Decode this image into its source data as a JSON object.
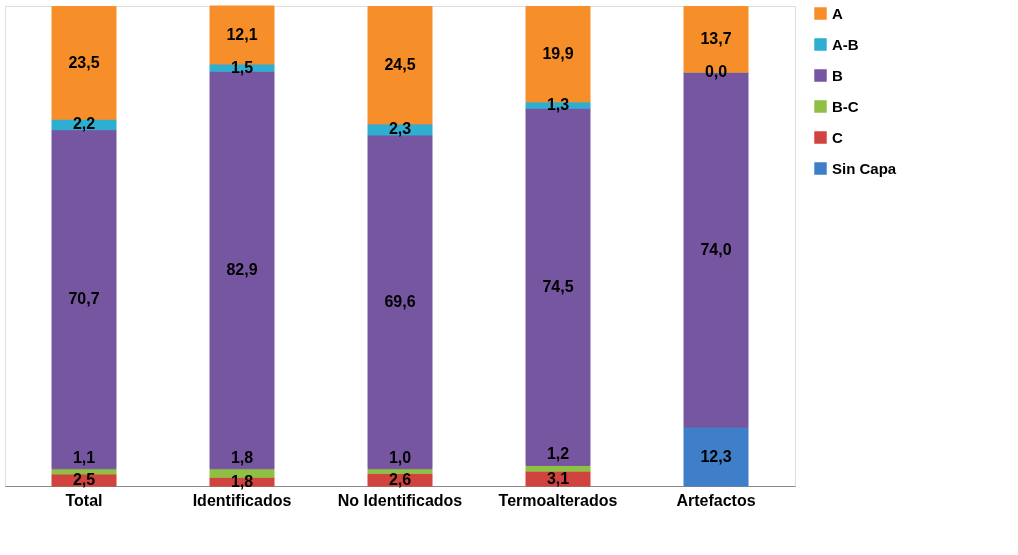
{
  "chart_data": {
    "type": "bar",
    "stacked": true,
    "legend": "right",
    "categories": [
      "Total",
      "Identificados",
      "No Identificados",
      "Termoalterados",
      "Artefactos"
    ],
    "series": [
      {
        "name": "Sin Capa",
        "color": "#3f7fc9",
        "values": [
          null,
          null,
          null,
          null,
          12.3
        ],
        "value_labels": [
          null,
          null,
          null,
          null,
          "12,3"
        ]
      },
      {
        "name": "C",
        "color": "#d0433f",
        "values": [
          2.5,
          1.8,
          2.6,
          3.1,
          null
        ],
        "value_labels": [
          "2,5",
          "1,8",
          "2,6",
          "3,1",
          null
        ]
      },
      {
        "name": "B-C",
        "color": "#8fbf45",
        "values": [
          1.1,
          1.8,
          1.0,
          1.2,
          null
        ],
        "value_labels": [
          "1,1",
          "1,8",
          "1,0",
          "1,2",
          null
        ]
      },
      {
        "name": "B",
        "color": "#7656a0",
        "values": [
          70.7,
          82.9,
          69.6,
          74.5,
          74.0
        ],
        "value_labels": [
          "70,7",
          "82,9",
          "69,6",
          "74,5",
          "74,0"
        ]
      },
      {
        "name": "A-B",
        "color": "#2eaed0",
        "values": [
          2.2,
          1.5,
          2.3,
          1.3,
          0.0
        ],
        "value_labels": [
          "2,2",
          "1,5",
          "2,3",
          "1,3",
          "0,0"
        ]
      },
      {
        "name": "A",
        "color": "#f68e2a",
        "values": [
          23.5,
          12.1,
          24.5,
          19.9,
          13.7
        ],
        "value_labels": [
          "23,5",
          "12,1",
          "24,5",
          "19,9",
          "13,7"
        ]
      }
    ]
  }
}
